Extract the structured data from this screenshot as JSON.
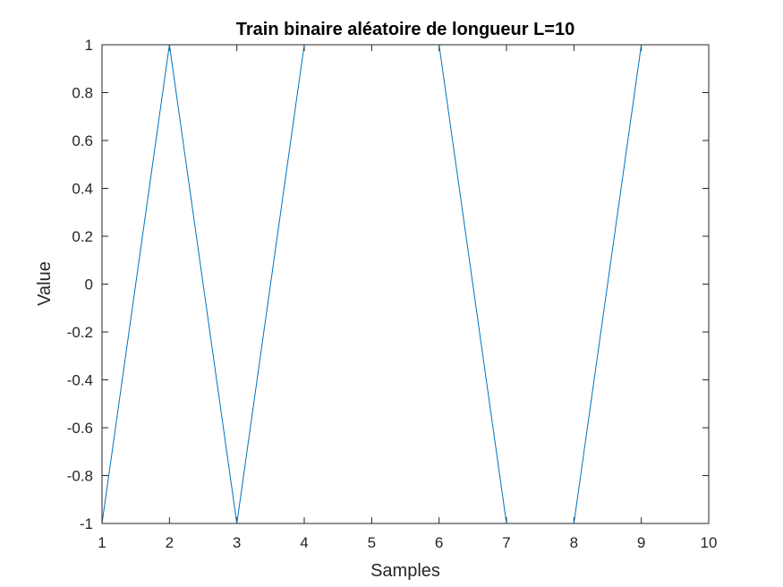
{
  "chart_data": {
    "type": "line",
    "title": "Train binaire aléatoire de longueur L=10",
    "xlabel": "Samples",
    "ylabel": "Value",
    "xlim": [
      1,
      10
    ],
    "ylim": [
      -1,
      1
    ],
    "x_ticks": [
      1,
      2,
      3,
      4,
      5,
      6,
      7,
      8,
      9,
      10
    ],
    "x_tick_labels": [
      "1",
      "2",
      "3",
      "4",
      "5",
      "6",
      "7",
      "8",
      "9",
      "10"
    ],
    "y_ticks": [
      -1,
      -0.8,
      -0.6,
      -0.4,
      -0.2,
      0,
      0.2,
      0.4,
      0.6,
      0.8,
      1
    ],
    "y_tick_labels": [
      "-1",
      "-0.8",
      "-0.6",
      "-0.4",
      "-0.2",
      "0",
      "0.2",
      "0.4",
      "0.6",
      "0.8",
      "1"
    ],
    "grid": false,
    "series": [
      {
        "x": [
          1,
          2,
          3,
          4,
          5,
          6,
          7,
          8,
          9,
          10
        ],
        "values": [
          -1,
          1,
          -1,
          1,
          1,
          1,
          -1,
          -1,
          1,
          1
        ],
        "color": "#0072BD"
      }
    ]
  }
}
